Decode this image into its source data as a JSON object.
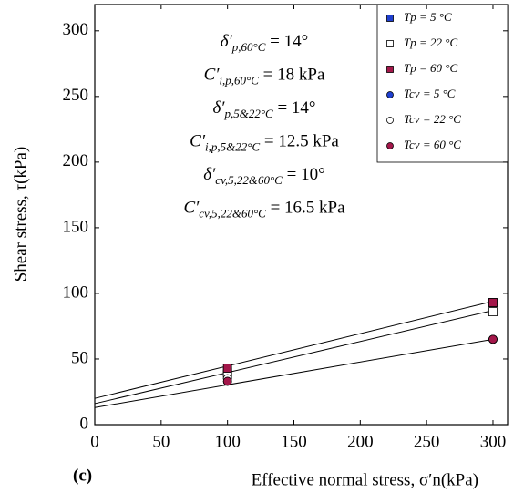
{
  "chart_data": {
    "type": "scatter",
    "x_label": "Effective normal stress, σ′n(kPa)",
    "y_label": "Shear stress, τ(kPa)",
    "panel_label": "(c)",
    "xlim": [
      0,
      311
    ],
    "xticks": [
      0,
      50,
      100,
      150,
      200,
      250,
      300
    ],
    "ylim": [
      0,
      320
    ],
    "yticks": [
      0,
      50,
      100,
      150,
      200,
      250,
      300
    ],
    "series": [
      {
        "name": "Tp = 5 °C",
        "color": "#1f3fcf",
        "marker": "square",
        "x": [
          100,
          300
        ],
        "values": [
          40,
          93
        ]
      },
      {
        "name": "Tp = 22 °C",
        "color": "#ffffff",
        "marker": "square",
        "x": [
          100,
          300
        ],
        "values": [
          38,
          86
        ]
      },
      {
        "name": "Tp = 60 °C",
        "color": "#a3174a",
        "marker": "square",
        "x": [
          100,
          300
        ],
        "values": [
          43,
          93
        ]
      },
      {
        "name": "Tcv = 5 °C",
        "color": "#1f3fcf",
        "marker": "circle",
        "x": [
          100,
          300
        ],
        "values": [
          33,
          65
        ]
      },
      {
        "name": "Tcv = 22 °C",
        "color": "#ffffff",
        "marker": "circle",
        "x": [
          100,
          300
        ],
        "values": [
          35,
          65
        ]
      },
      {
        "name": "Tcv = 60 °C",
        "color": "#a3174a",
        "marker": "circle",
        "x": [
          100,
          300
        ],
        "values": [
          33,
          65
        ]
      }
    ],
    "lines": [
      {
        "x": [
          0,
          300
        ],
        "values": [
          20,
          94
        ]
      },
      {
        "x": [
          0,
          300
        ],
        "values": [
          16,
          87
        ]
      },
      {
        "x": [
          0,
          300
        ],
        "values": [
          13,
          65
        ]
      }
    ],
    "annotations": [
      {
        "sym": "δ′",
        "sub": "p,60°C",
        "rest": " = 14°"
      },
      {
        "sym": "C′",
        "sub": "i,p,60°C",
        "rest": " = 18 kPa"
      },
      {
        "sym": "δ′",
        "sub": "p,5&22°C",
        "rest": " = 14°"
      },
      {
        "sym": "C′",
        "sub": "i,p,5&22°C",
        "rest": " = 12.5 kPa"
      },
      {
        "sym": "δ′",
        "sub": "cv,5,22&60°C",
        "rest": " = 10°"
      },
      {
        "sym": "C′",
        "sub": "cv,5,22&60°C",
        "rest": " = 16.5 kPa"
      }
    ]
  }
}
